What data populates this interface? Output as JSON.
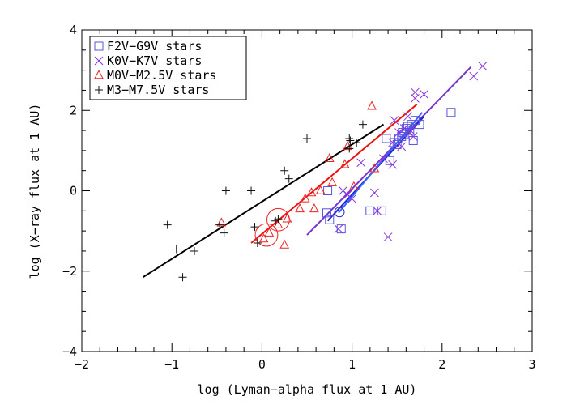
{
  "chart_data": {
    "type": "scatter",
    "xlabel": "log (Lyman−alpha flux at 1 AU)",
    "ylabel": "log (X−ray flux at 1 AU)",
    "xlim": [
      -2,
      3
    ],
    "ylim": [
      -4,
      4
    ],
    "x_ticks": [
      "−2",
      "−1",
      "0",
      "1",
      "2",
      "3"
    ],
    "y_ticks": [
      "−4",
      "−2",
      "0",
      "2",
      "4"
    ],
    "legend_position": "top-left",
    "series": [
      {
        "name": "F2V−G9V stars",
        "marker": "square",
        "color": "#5555dd",
        "points": [
          [
            0.72,
            -0.55
          ],
          [
            0.73,
            0.0
          ],
          [
            0.75,
            -0.72
          ],
          [
            0.88,
            -0.95
          ],
          [
            1.2,
            -0.5
          ],
          [
            1.33,
            -0.5
          ],
          [
            1.42,
            0.75
          ],
          [
            1.47,
            1.2
          ],
          [
            1.5,
            1.15
          ],
          [
            1.52,
            1.3
          ],
          [
            1.55,
            1.35
          ],
          [
            1.56,
            1.45
          ],
          [
            1.58,
            1.4
          ],
          [
            1.6,
            1.55
          ],
          [
            1.62,
            1.6
          ],
          [
            1.64,
            1.5
          ],
          [
            1.66,
            1.65
          ],
          [
            1.68,
            1.25
          ],
          [
            1.7,
            1.75
          ],
          [
            1.75,
            1.65
          ],
          [
            1.38,
            1.3
          ],
          [
            2.1,
            1.95
          ]
        ]
      },
      {
        "name": "K0V−K7V stars",
        "marker": "x",
        "color": "#8833dd",
        "points": [
          [
            0.85,
            -0.95
          ],
          [
            0.9,
            0.0
          ],
          [
            0.95,
            -0.1
          ],
          [
            1.0,
            -0.2
          ],
          [
            1.1,
            0.7
          ],
          [
            1.25,
            -0.05
          ],
          [
            1.28,
            -0.5
          ],
          [
            1.35,
            0.8
          ],
          [
            1.4,
            -1.15
          ],
          [
            1.45,
            1.2
          ],
          [
            1.47,
            1.75
          ],
          [
            1.52,
            1.45
          ],
          [
            1.58,
            1.55
          ],
          [
            1.62,
            1.85
          ],
          [
            1.65,
            1.5
          ],
          [
            1.68,
            1.35
          ],
          [
            1.7,
            2.3
          ],
          [
            1.7,
            2.45
          ],
          [
            1.8,
            2.4
          ],
          [
            2.35,
            2.85
          ],
          [
            2.45,
            3.1
          ],
          [
            1.45,
            0.65
          ],
          [
            1.55,
            1.1
          ]
        ]
      },
      {
        "name": "M0V−M2.5V stars",
        "marker": "triangle",
        "color": "#ee2222",
        "points": [
          [
            -0.45,
            -0.8
          ],
          [
            0.02,
            -1.2
          ],
          [
            0.08,
            -1.05
          ],
          [
            0.18,
            -0.85
          ],
          [
            0.25,
            -1.35
          ],
          [
            0.28,
            -0.7
          ],
          [
            0.42,
            -0.45
          ],
          [
            0.48,
            -0.2
          ],
          [
            0.55,
            -0.05
          ],
          [
            0.58,
            -0.45
          ],
          [
            0.75,
            0.8
          ],
          [
            0.78,
            0.2
          ],
          [
            0.92,
            0.65
          ],
          [
            0.95,
            1.1
          ],
          [
            1.02,
            0.1
          ],
          [
            1.22,
            2.1
          ],
          [
            1.25,
            0.55
          ],
          [
            0.65,
            0.0
          ]
        ]
      },
      {
        "name": "M3−M7.5V stars",
        "marker": "plus",
        "color": "#111111",
        "points": [
          [
            -1.05,
            -0.85
          ],
          [
            -0.95,
            -1.45
          ],
          [
            -0.88,
            -2.15
          ],
          [
            -0.75,
            -1.5
          ],
          [
            -0.47,
            -0.85
          ],
          [
            -0.42,
            -1.05
          ],
          [
            -0.4,
            0.0
          ],
          [
            -0.12,
            0.0
          ],
          [
            -0.05,
            -1.3
          ],
          [
            -0.08,
            -0.9
          ],
          [
            0.15,
            -0.75
          ],
          [
            0.18,
            -0.7
          ],
          [
            0.25,
            0.5
          ],
          [
            0.3,
            0.3
          ],
          [
            0.5,
            1.3
          ],
          [
            0.97,
            1.05
          ],
          [
            0.97,
            1.3
          ],
          [
            1.05,
            1.2
          ],
          [
            1.12,
            1.65
          ],
          [
            0.98,
            1.25
          ]
        ]
      }
    ],
    "fit_lines": [
      {
        "color": "#000000",
        "x": [
          -1.32,
          1.35
        ],
        "y": [
          -2.15,
          1.65
        ]
      },
      {
        "color": "#ee1111",
        "x": [
          -0.12,
          1.72
        ],
        "y": [
          -1.3,
          2.15
        ]
      },
      {
        "color": "#7733cc",
        "x": [
          0.5,
          2.32
        ],
        "y": [
          -1.1,
          3.08
        ]
      },
      {
        "color": "#2222cc",
        "x": [
          0.73,
          1.8
        ],
        "y": [
          -0.75,
          1.85
        ]
      },
      {
        "color": "#3366ff",
        "x": [
          0.85,
          1.78
        ],
        "y": [
          -0.55,
          1.95
        ]
      }
    ],
    "circles": [
      {
        "color": "#ee2222",
        "x": 0.18,
        "y": -0.72,
        "r_data_y": 0.28
      },
      {
        "color": "#ee2222",
        "x": 0.05,
        "y": -1.1,
        "r_data_y": 0.28
      },
      {
        "color": "#2222cc",
        "x": 0.86,
        "y": -0.53,
        "r_data_y": 0.12
      }
    ]
  }
}
